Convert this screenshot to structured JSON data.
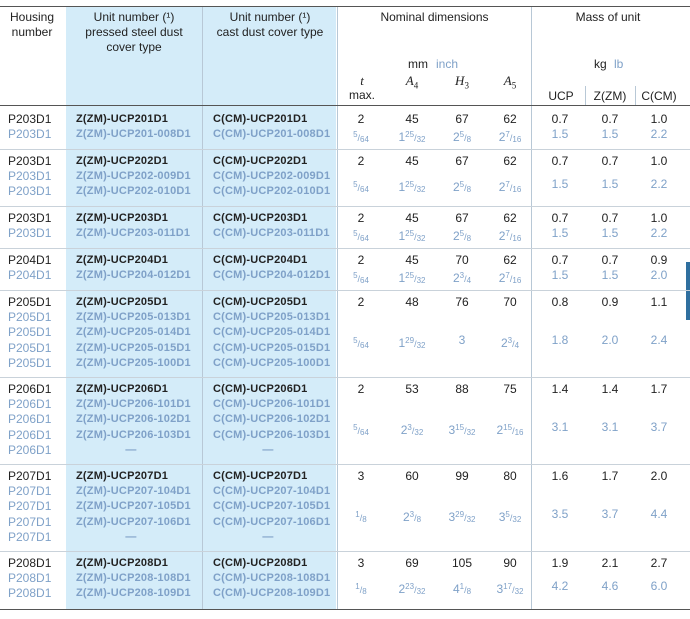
{
  "header": {
    "housing": "Housing\nnumber",
    "unit_pressed": "Unit number (¹)\npressed steel dust\ncover type",
    "unit_cast": "Unit number (¹)\ncast dust cover type",
    "nominal": "Nominal dimensions",
    "mass": "Mass of unit",
    "unit_mm": "mm",
    "unit_inch": "inch",
    "unit_kg": "kg",
    "unit_lb": "lb",
    "t": "t",
    "tmax": "max.",
    "a4": "A",
    "a4_sub": "4",
    "h3": "H",
    "h3_sub": "3",
    "a5": "A",
    "a5_sub": "5",
    "ucp": "UCP",
    "zm": "Z(ZM)",
    "cm": "C(CM)"
  },
  "groups": [
    {
      "housing": [
        "P203D1",
        "P203D1"
      ],
      "pressed": [
        "Z(ZM)-UCP201D1",
        "Z(ZM)-UCP201-008D1"
      ],
      "cast": [
        "C(CM)-UCP201D1",
        "C(CM)-UCP201-008D1"
      ],
      "mm": {
        "t": "2",
        "a4": "45",
        "h3": "67",
        "a5": "62"
      },
      "inch": {
        "t": "5/64",
        "a4": "1 25/32",
        "h3": "2 5/8",
        "a5": "2 7/16"
      },
      "kg": {
        "ucp": "0.7",
        "zm": "0.7",
        "cm": "1.0"
      },
      "lb": {
        "ucp": "1.5",
        "zm": "1.5",
        "cm": "2.2"
      }
    },
    {
      "housing": [
        "P203D1",
        "P203D1",
        "P203D1"
      ],
      "pressed": [
        "Z(ZM)-UCP202D1",
        "Z(ZM)-UCP202-009D1",
        "Z(ZM)-UCP202-010D1"
      ],
      "cast": [
        "C(CM)-UCP202D1",
        "C(CM)-UCP202-009D1",
        "C(CM)-UCP202-010D1"
      ],
      "mm": {
        "t": "2",
        "a4": "45",
        "h3": "67",
        "a5": "62"
      },
      "inch": {
        "t": "5/64",
        "a4": "1 25/32",
        "h3": "2 5/8",
        "a5": "2 7/16"
      },
      "kg": {
        "ucp": "0.7",
        "zm": "0.7",
        "cm": "1.0"
      },
      "lb": {
        "ucp": "1.5",
        "zm": "1.5",
        "cm": "2.2"
      }
    },
    {
      "housing": [
        "P203D1",
        "P203D1"
      ],
      "pressed": [
        "Z(ZM)-UCP203D1",
        "Z(ZM)-UCP203-011D1"
      ],
      "cast": [
        "C(CM)-UCP203D1",
        "C(CM)-UCP203-011D1"
      ],
      "mm": {
        "t": "2",
        "a4": "45",
        "h3": "67",
        "a5": "62"
      },
      "inch": {
        "t": "5/64",
        "a4": "1 25/32",
        "h3": "2 5/8",
        "a5": "2 7/16"
      },
      "kg": {
        "ucp": "0.7",
        "zm": "0.7",
        "cm": "1.0"
      },
      "lb": {
        "ucp": "1.5",
        "zm": "1.5",
        "cm": "2.2"
      }
    },
    {
      "housing": [
        "P204D1",
        "P204D1"
      ],
      "pressed": [
        "Z(ZM)-UCP204D1",
        "Z(ZM)-UCP204-012D1"
      ],
      "cast": [
        "C(CM)-UCP204D1",
        "C(CM)-UCP204-012D1"
      ],
      "mm": {
        "t": "2",
        "a4": "45",
        "h3": "70",
        "a5": "62"
      },
      "inch": {
        "t": "5/64",
        "a4": "1 25/32",
        "h3": "2 3/4",
        "a5": "2 7/16"
      },
      "kg": {
        "ucp": "0.7",
        "zm": "0.7",
        "cm": "0.9"
      },
      "lb": {
        "ucp": "1.5",
        "zm": "1.5",
        "cm": "2.0"
      }
    },
    {
      "housing": [
        "P205D1",
        "P205D1",
        "P205D1",
        "P205D1",
        "P205D1"
      ],
      "pressed": [
        "Z(ZM)-UCP205D1",
        "Z(ZM)-UCP205-013D1",
        "Z(ZM)-UCP205-014D1",
        "Z(ZM)-UCP205-015D1",
        "Z(ZM)-UCP205-100D1"
      ],
      "cast": [
        "C(CM)-UCP205D1",
        "C(CM)-UCP205-013D1",
        "C(CM)-UCP205-014D1",
        "C(CM)-UCP205-015D1",
        "C(CM)-UCP205-100D1"
      ],
      "mm": {
        "t": "2",
        "a4": "48",
        "h3": "76",
        "a5": "70"
      },
      "inch": {
        "t": "5/64",
        "a4": "1 29/32",
        "h3": "3",
        "a5": "2 3/4"
      },
      "kg": {
        "ucp": "0.8",
        "zm": "0.9",
        "cm": "1.1"
      },
      "lb": {
        "ucp": "1.8",
        "zm": "2.0",
        "cm": "2.4"
      }
    },
    {
      "housing": [
        "P206D1",
        "P206D1",
        "P206D1",
        "P206D1",
        "P206D1"
      ],
      "pressed": [
        "Z(ZM)-UCP206D1",
        "Z(ZM)-UCP206-101D1",
        "Z(ZM)-UCP206-102D1",
        "Z(ZM)-UCP206-103D1",
        "—"
      ],
      "cast": [
        "C(CM)-UCP206D1",
        "C(CM)-UCP206-101D1",
        "C(CM)-UCP206-102D1",
        "C(CM)-UCP206-103D1",
        "—"
      ],
      "mm": {
        "t": "2",
        "a4": "53",
        "h3": "88",
        "a5": "75"
      },
      "inch": {
        "t": "5/64",
        "a4": "2 3/32",
        "h3": "3 15/32",
        "a5": "2 15/16"
      },
      "kg": {
        "ucp": "1.4",
        "zm": "1.4",
        "cm": "1.7"
      },
      "lb": {
        "ucp": "3.1",
        "zm": "3.1",
        "cm": "3.7"
      }
    },
    {
      "housing": [
        "P207D1",
        "P207D1",
        "P207D1",
        "P207D1",
        "P207D1"
      ],
      "pressed": [
        "Z(ZM)-UCP207D1",
        "Z(ZM)-UCP207-104D1",
        "Z(ZM)-UCP207-105D1",
        "Z(ZM)-UCP207-106D1",
        "—"
      ],
      "cast": [
        "C(CM)-UCP207D1",
        "C(CM)-UCP207-104D1",
        "C(CM)-UCP207-105D1",
        "C(CM)-UCP207-106D1",
        "—"
      ],
      "mm": {
        "t": "3",
        "a4": "60",
        "h3": "99",
        "a5": "80"
      },
      "inch": {
        "t": "1/8",
        "a4": "2 3/8",
        "h3": "3 29/32",
        "a5": "3 5/32"
      },
      "kg": {
        "ucp": "1.6",
        "zm": "1.7",
        "cm": "2.0"
      },
      "lb": {
        "ucp": "3.5",
        "zm": "3.7",
        "cm": "4.4"
      }
    },
    {
      "housing": [
        "P208D1",
        "P208D1",
        "P208D1"
      ],
      "pressed": [
        "Z(ZM)-UCP208D1",
        "Z(ZM)-UCP208-108D1",
        "Z(ZM)-UCP208-109D1"
      ],
      "cast": [
        "C(CM)-UCP208D1",
        "C(CM)-UCP208-108D1",
        "C(CM)-UCP208-109D1"
      ],
      "mm": {
        "t": "3",
        "a4": "69",
        "h3": "105",
        "a5": "90"
      },
      "inch": {
        "t": "1/8",
        "a4": "2 23/32",
        "h3": "4 1/8",
        "a5": "3 17/32"
      },
      "kg": {
        "ucp": "1.9",
        "zm": "2.1",
        "cm": "2.7"
      },
      "lb": {
        "ucp": "4.2",
        "zm": "4.6",
        "cm": "6.0"
      }
    }
  ],
  "colors": {
    "highlight": "#d4ecf9",
    "secondary_text": "#7fa1c8",
    "primary_text": "#222222",
    "rule_dark": "#555555",
    "rule_light": "#c9d2da",
    "edge_tab": "#2f6f9f"
  }
}
